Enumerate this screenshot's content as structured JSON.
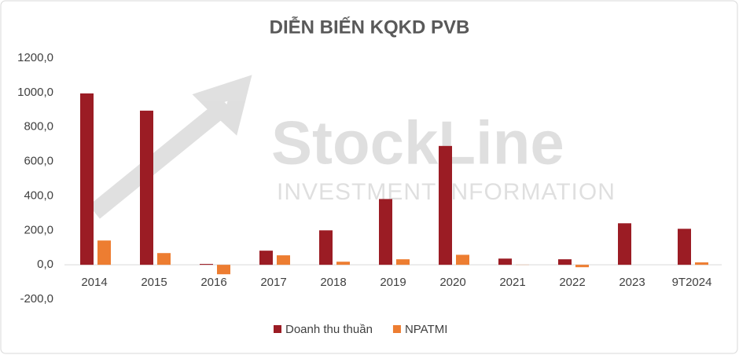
{
  "chart_data": {
    "type": "bar",
    "title": "DIỄN BIẾN KQKD PVB",
    "watermark": [
      "StockLine",
      "INVESTMENT INFORMATION"
    ],
    "categories": [
      "2014",
      "2015",
      "2016",
      "2017",
      "2018",
      "2019",
      "2020",
      "2021",
      "2022",
      "2023",
      "9T2024"
    ],
    "series": [
      {
        "name": "Doanh thu thuần",
        "color": "#9b1c24",
        "values": [
          995,
          895,
          5,
          82,
          200,
          382,
          690,
          36,
          32,
          241,
          209
        ]
      },
      {
        "name": "NPATMI",
        "color": "#ed7d31",
        "values": [
          141,
          68,
          -55,
          55,
          18,
          32,
          58,
          1,
          -14,
          0,
          14
        ]
      }
    ],
    "ylim": [
      -200,
      1200
    ],
    "yticks": [
      {
        "value": -200,
        "label": "-200,0"
      },
      {
        "value": 0,
        "label": "0,0"
      },
      {
        "value": 200,
        "label": "200,0"
      },
      {
        "value": 400,
        "label": "400,0"
      },
      {
        "value": 600,
        "label": "600,0"
      },
      {
        "value": 800,
        "label": "800,0"
      },
      {
        "value": 1000,
        "label": "1000,0"
      },
      {
        "value": 1200,
        "label": "1200,0"
      }
    ],
    "grid": false,
    "legend": "bottom"
  }
}
